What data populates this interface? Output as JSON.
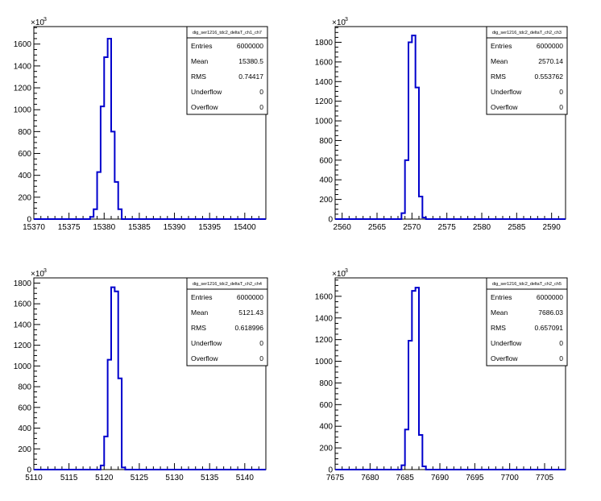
{
  "chart_data": [
    {
      "type": "histogram",
      "title": "dig_ser1216_tdc2_deltaT_ch1_ch7",
      "xlim": [
        15370,
        15403
      ],
      "ylim": [
        0,
        1760
      ],
      "y_exponent": "×10",
      "y_exponent_power": "3",
      "x_ticks": [
        15370,
        15375,
        15380,
        15385,
        15390,
        15395,
        15400
      ],
      "y_ticks": [
        0,
        200,
        400,
        600,
        800,
        1000,
        1200,
        1400,
        1600
      ],
      "bin_edges": [
        15378,
        15378.5,
        15379,
        15379.5,
        15380,
        15380.5,
        15381,
        15381.5,
        15382,
        15382.5
      ],
      "values": [
        20,
        90,
        430,
        1030,
        1480,
        1650,
        800,
        340,
        90
      ],
      "stats": [
        {
          "label": "Entries",
          "value": "6000000"
        },
        {
          "label": "Mean",
          "value": "15380.5"
        },
        {
          "label": "RMS",
          "value": "0.74417"
        },
        {
          "label": "Underflow",
          "value": "0"
        },
        {
          "label": "Overflow",
          "value": "0"
        }
      ]
    },
    {
      "type": "histogram",
      "title": "dig_ser1216_tdc2_deltaT_ch2_ch3",
      "xlim": [
        2559,
        2592
      ],
      "ylim": [
        0,
        1960
      ],
      "y_exponent": "×10",
      "y_exponent_power": "3",
      "x_ticks": [
        2560,
        2565,
        2570,
        2575,
        2580,
        2585,
        2590
      ],
      "y_ticks": [
        0,
        200,
        400,
        600,
        800,
        1000,
        1200,
        1400,
        1600,
        1800
      ],
      "bin_edges": [
        2568.5,
        2569,
        2569.5,
        2570,
        2570.5,
        2571,
        2571.5,
        2572
      ],
      "values": [
        60,
        600,
        1800,
        1870,
        1340,
        230,
        15
      ],
      "stats": [
        {
          "label": "Entries",
          "value": "6000000"
        },
        {
          "label": "Mean",
          "value": "2570.14"
        },
        {
          "label": "RMS",
          "value": "0.553762"
        },
        {
          "label": "Underflow",
          "value": "0"
        },
        {
          "label": "Overflow",
          "value": "0"
        }
      ]
    },
    {
      "type": "histogram",
      "title": "dig_ser1216_tdc2_deltaT_ch2_ch4",
      "xlim": [
        5110,
        5143
      ],
      "ylim": [
        0,
        1850
      ],
      "y_exponent": "×10",
      "y_exponent_power": "3",
      "x_ticks": [
        5110,
        5115,
        5120,
        5125,
        5130,
        5135,
        5140
      ],
      "y_ticks": [
        0,
        200,
        400,
        600,
        800,
        1000,
        1200,
        1400,
        1600,
        1800
      ],
      "bin_edges": [
        5119.5,
        5120,
        5120.5,
        5121,
        5121.5,
        5122,
        5122.5,
        5123
      ],
      "values": [
        40,
        320,
        1060,
        1760,
        1720,
        880,
        20
      ],
      "stats": [
        {
          "label": "Entries",
          "value": "6000000"
        },
        {
          "label": "Mean",
          "value": "5121.43"
        },
        {
          "label": "RMS",
          "value": "0.618996"
        },
        {
          "label": "Underflow",
          "value": "0"
        },
        {
          "label": "Overflow",
          "value": "0"
        }
      ]
    },
    {
      "type": "histogram",
      "title": "dig_ser1216_tdc2_deltaT_ch2_ch5",
      "xlim": [
        7675,
        7708
      ],
      "ylim": [
        0,
        1770
      ],
      "y_exponent": "×10",
      "y_exponent_power": "3",
      "x_ticks": [
        7675,
        7680,
        7685,
        7690,
        7695,
        7700,
        7705
      ],
      "y_ticks": [
        0,
        200,
        400,
        600,
        800,
        1000,
        1200,
        1400,
        1600
      ],
      "bin_edges": [
        7684.5,
        7685,
        7685.5,
        7686,
        7686.5,
        7687,
        7687.5,
        7688
      ],
      "values": [
        40,
        370,
        1190,
        1650,
        1680,
        320,
        30
      ],
      "stats": [
        {
          "label": "Entries",
          "value": "6000000"
        },
        {
          "label": "Mean",
          "value": "7686.03"
        },
        {
          "label": "RMS",
          "value": "0.657091"
        },
        {
          "label": "Underflow",
          "value": "0"
        },
        {
          "label": "Overflow",
          "value": "0"
        }
      ]
    }
  ],
  "colors": {
    "histogram_line": "#0000cc",
    "axis": "#000000",
    "background": "#ffffff"
  }
}
